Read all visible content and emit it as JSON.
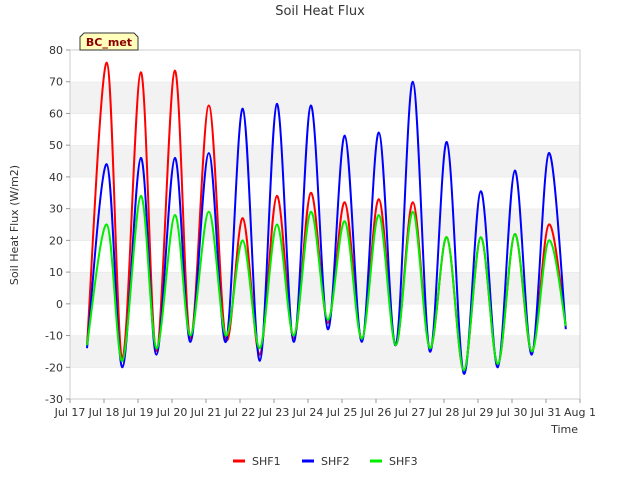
{
  "chart_data": {
    "type": "line",
    "title": "Soil Heat Flux",
    "xlabel": "Time",
    "ylabel": "Soil Heat Flux (W/m2)",
    "site_badge": "BC_met",
    "ylim": [
      -30,
      80
    ],
    "xlim_days": [
      0,
      15
    ],
    "y_ticks": [
      -30,
      -20,
      -10,
      0,
      10,
      20,
      30,
      40,
      50,
      60,
      70,
      80
    ],
    "x_tick_labels": [
      "Jul 17",
      "Jul 18",
      "Jul 19",
      "Jul 20",
      "Jul 21",
      "Jul 22",
      "Jul 23",
      "Jul 24",
      "Jul 25",
      "Jul 26",
      "Jul 27",
      "Jul 28",
      "Jul 29",
      "Jul 30",
      "Jul 31",
      "Aug 1"
    ],
    "grid": "horizontal bands",
    "legend_position": "bottom",
    "series": [
      {
        "name": "SHF1",
        "color": "#ff0000",
        "x": [
          "2024-07-17 12:00",
          "2024-07-18 02:00",
          "2024-07-18 13:00",
          "2024-07-19 02:00",
          "2024-07-19 13:00",
          "2024-07-20 02:00",
          "2024-07-20 13:00",
          "2024-07-21 02:00",
          "2024-07-21 14:00",
          "2024-07-22 02:00",
          "2024-07-22 14:00",
          "2024-07-23 02:00",
          "2024-07-23 14:00",
          "2024-07-24 02:00",
          "2024-07-24 14:00",
          "2024-07-25 02:00",
          "2024-07-25 14:00",
          "2024-07-26 02:00",
          "2024-07-26 14:00",
          "2024-07-27 02:00",
          "2024-07-27 14:00",
          "2024-07-28 02:00",
          "2024-07-28 14:00",
          "2024-07-29 02:00",
          "2024-07-29 14:00",
          "2024-07-30 02:00",
          "2024-07-30 14:00",
          "2024-07-31 02:00",
          "2024-07-31 14:00"
        ],
        "y": [
          -13,
          76,
          -17,
          73,
          -15,
          73.5,
          -11,
          62.5,
          -11,
          27,
          -16,
          34,
          -11,
          35,
          -6,
          32,
          -11,
          33,
          -13,
          32,
          -14,
          21,
          -21,
          21,
          -19,
          22,
          -15,
          25,
          -7
        ]
      },
      {
        "name": "SHF2",
        "color": "#0000ff",
        "x": [
          "2024-07-17 12:00",
          "2024-07-18 02:00",
          "2024-07-18 13:00",
          "2024-07-19 02:00",
          "2024-07-19 13:00",
          "2024-07-20 02:00",
          "2024-07-20 13:00",
          "2024-07-21 02:00",
          "2024-07-21 14:00",
          "2024-07-22 02:00",
          "2024-07-22 14:00",
          "2024-07-23 02:00",
          "2024-07-23 14:00",
          "2024-07-24 02:00",
          "2024-07-24 14:00",
          "2024-07-25 02:00",
          "2024-07-25 14:00",
          "2024-07-26 02:00",
          "2024-07-26 14:00",
          "2024-07-27 02:00",
          "2024-07-27 14:00",
          "2024-07-28 02:00",
          "2024-07-28 14:00",
          "2024-07-29 02:00",
          "2024-07-29 14:00",
          "2024-07-30 02:00",
          "2024-07-30 14:00",
          "2024-07-31 02:00",
          "2024-07-31 14:00"
        ],
        "y": [
          -14,
          44,
          -20,
          46,
          -16,
          46,
          -12,
          47.5,
          -12,
          61.5,
          -18,
          63,
          -12,
          62.5,
          -8,
          53,
          -12,
          54,
          -13,
          70,
          -15,
          51,
          -22,
          35.5,
          -20,
          42,
          -16,
          47.5,
          -8
        ]
      },
      {
        "name": "SHF3",
        "color": "#00ee00",
        "x": [
          "2024-07-17 12:00",
          "2024-07-18 02:00",
          "2024-07-18 13:00",
          "2024-07-19 02:00",
          "2024-07-19 13:00",
          "2024-07-20 02:00",
          "2024-07-20 13:00",
          "2024-07-21 02:00",
          "2024-07-21 14:00",
          "2024-07-22 02:00",
          "2024-07-22 14:00",
          "2024-07-23 02:00",
          "2024-07-23 14:00",
          "2024-07-24 02:00",
          "2024-07-24 14:00",
          "2024-07-25 02:00",
          "2024-07-25 14:00",
          "2024-07-26 02:00",
          "2024-07-26 14:00",
          "2024-07-27 02:00",
          "2024-07-27 14:00",
          "2024-07-28 02:00",
          "2024-07-28 14:00",
          "2024-07-29 02:00",
          "2024-07-29 14:00",
          "2024-07-30 02:00",
          "2024-07-30 14:00",
          "2024-07-31 02:00",
          "2024-07-31 14:00"
        ],
        "y": [
          -13,
          25,
          -18,
          34,
          -14,
          28,
          -10,
          29,
          -10,
          20,
          -14,
          25,
          -10,
          29,
          -5,
          26,
          -11,
          28,
          -13,
          29,
          -14,
          21,
          -21,
          21,
          -19,
          22,
          -15,
          20,
          -7
        ]
      }
    ]
  }
}
